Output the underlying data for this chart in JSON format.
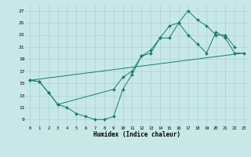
{
  "xlabel": "Humidex (Indice chaleur)",
  "bg_color": "#c8e8e8",
  "line_color": "#1a7a6e",
  "grid_color": "#a0cccc",
  "xlim": [
    -0.5,
    23.5
  ],
  "ylim": [
    8.0,
    28.0
  ],
  "xticks": [
    0,
    1,
    2,
    3,
    4,
    5,
    6,
    7,
    8,
    9,
    10,
    11,
    12,
    13,
    14,
    15,
    16,
    17,
    18,
    19,
    20,
    21,
    22,
    23
  ],
  "yticks": [
    9,
    11,
    13,
    15,
    17,
    19,
    21,
    23,
    25,
    27
  ],
  "curve1": {
    "x": [
      0,
      1,
      2,
      3,
      4,
      5,
      6,
      7,
      8,
      9,
      10,
      11,
      12,
      13,
      14,
      15,
      16,
      17,
      18,
      19,
      20,
      21,
      22
    ],
    "y": [
      15.5,
      15.3,
      13.5,
      11.5,
      11.0,
      10.0,
      9.5,
      9.0,
      9.0,
      9.5,
      14.0,
      16.5,
      19.5,
      20.0,
      22.5,
      22.5,
      25.0,
      27.0,
      25.5,
      24.5,
      23.0,
      23.0,
      21.0
    ]
  },
  "curve2": {
    "x": [
      0,
      1,
      2,
      3,
      9,
      10,
      11,
      12,
      13,
      14,
      15,
      16,
      17,
      18,
      19,
      20,
      21,
      22,
      23
    ],
    "y": [
      15.5,
      15.3,
      13.5,
      11.5,
      14.0,
      16.0,
      17.0,
      19.5,
      20.5,
      22.5,
      24.5,
      25.0,
      23.0,
      21.5,
      20.0,
      23.5,
      22.5,
      20.0,
      20.0
    ]
  },
  "curve3": {
    "x": [
      0,
      23
    ],
    "y": [
      15.5,
      20.0
    ]
  }
}
